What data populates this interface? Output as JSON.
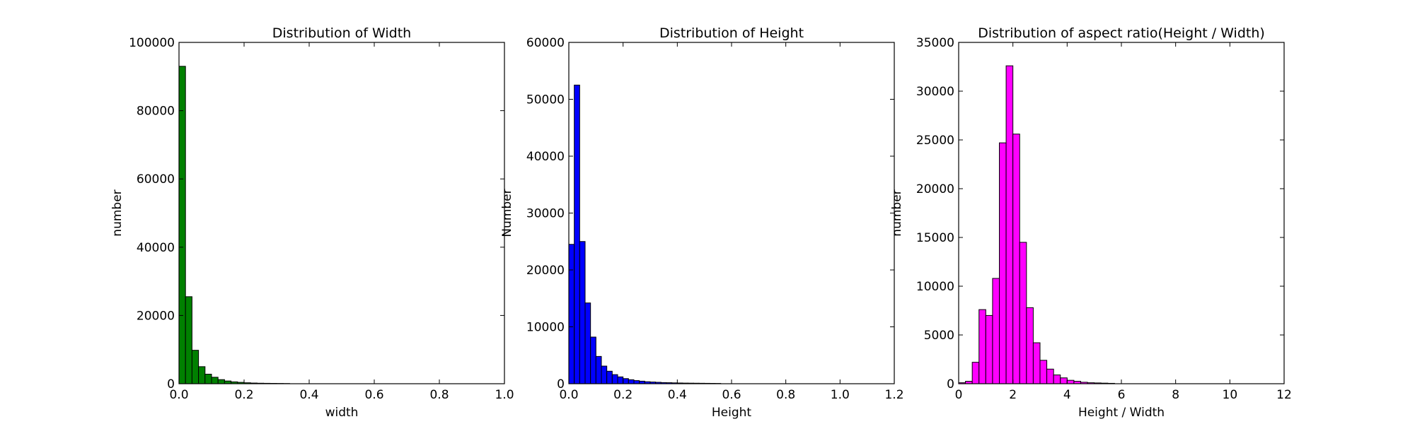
{
  "chart_data": [
    {
      "type": "bar",
      "title": "Distribution of Width",
      "xlabel": "width",
      "ylabel": "number",
      "color": "#008000",
      "xlim": [
        0,
        1.0
      ],
      "ylim": [
        0,
        100000
      ],
      "xticks": [
        0.0,
        0.2,
        0.4,
        0.6,
        0.8,
        1.0
      ],
      "xtick_labels": [
        "0.0",
        "0.2",
        "0.4",
        "0.6",
        "0.8",
        "1.0"
      ],
      "yticks": [
        0,
        20000,
        40000,
        60000,
        80000,
        100000
      ],
      "ytick_labels": [
        "0",
        "20000",
        "40000",
        "60000",
        "80000",
        "100000"
      ],
      "bin_start": 0.0,
      "bin_width": 0.02,
      "values": [
        93000,
        25500,
        9800,
        5000,
        2800,
        1900,
        1200,
        800,
        550,
        400,
        280,
        200,
        150,
        120,
        100,
        80,
        60
      ]
    },
    {
      "type": "bar",
      "title": "Distribution of Height",
      "xlabel": "Height",
      "ylabel": "Number",
      "color": "#0000ff",
      "xlim": [
        0,
        1.2
      ],
      "ylim": [
        0,
        60000
      ],
      "xticks": [
        0.0,
        0.2,
        0.4,
        0.6,
        0.8,
        1.0,
        1.2
      ],
      "xtick_labels": [
        "0.0",
        "0.2",
        "0.4",
        "0.6",
        "0.8",
        "1.0",
        "1.2"
      ],
      "yticks": [
        0,
        10000,
        20000,
        30000,
        40000,
        50000,
        60000
      ],
      "ytick_labels": [
        "0",
        "10000",
        "20000",
        "30000",
        "40000",
        "50000",
        "60000"
      ],
      "bin_start": 0.0,
      "bin_width": 0.02,
      "values": [
        24500,
        52500,
        25000,
        14200,
        8200,
        4800,
        3100,
        2200,
        1600,
        1200,
        900,
        700,
        550,
        450,
        350,
        300,
        250,
        200,
        180,
        150,
        130,
        110,
        100,
        90,
        80,
        70,
        60,
        50
      ]
    },
    {
      "type": "bar",
      "title": "Distribution of aspect ratio(Height / Width)",
      "xlabel": "Height / Width",
      "ylabel": "number",
      "color": "#ff00ff",
      "xlim": [
        0,
        12
      ],
      "ylim": [
        0,
        35000
      ],
      "xticks": [
        0,
        2,
        4,
        6,
        8,
        10,
        12
      ],
      "xtick_labels": [
        "0",
        "2",
        "4",
        "6",
        "8",
        "10",
        "12"
      ],
      "yticks": [
        0,
        5000,
        10000,
        15000,
        20000,
        25000,
        30000,
        35000
      ],
      "ytick_labels": [
        "0",
        "5000",
        "10000",
        "15000",
        "20000",
        "25000",
        "30000",
        "35000"
      ],
      "bin_start": 0.0,
      "bin_width": 0.25,
      "values": [
        100,
        250,
        2200,
        7600,
        7000,
        10800,
        24700,
        32600,
        25600,
        14500,
        7800,
        4200,
        2400,
        1500,
        900,
        600,
        350,
        250,
        150,
        100,
        80,
        60,
        40
      ]
    }
  ]
}
